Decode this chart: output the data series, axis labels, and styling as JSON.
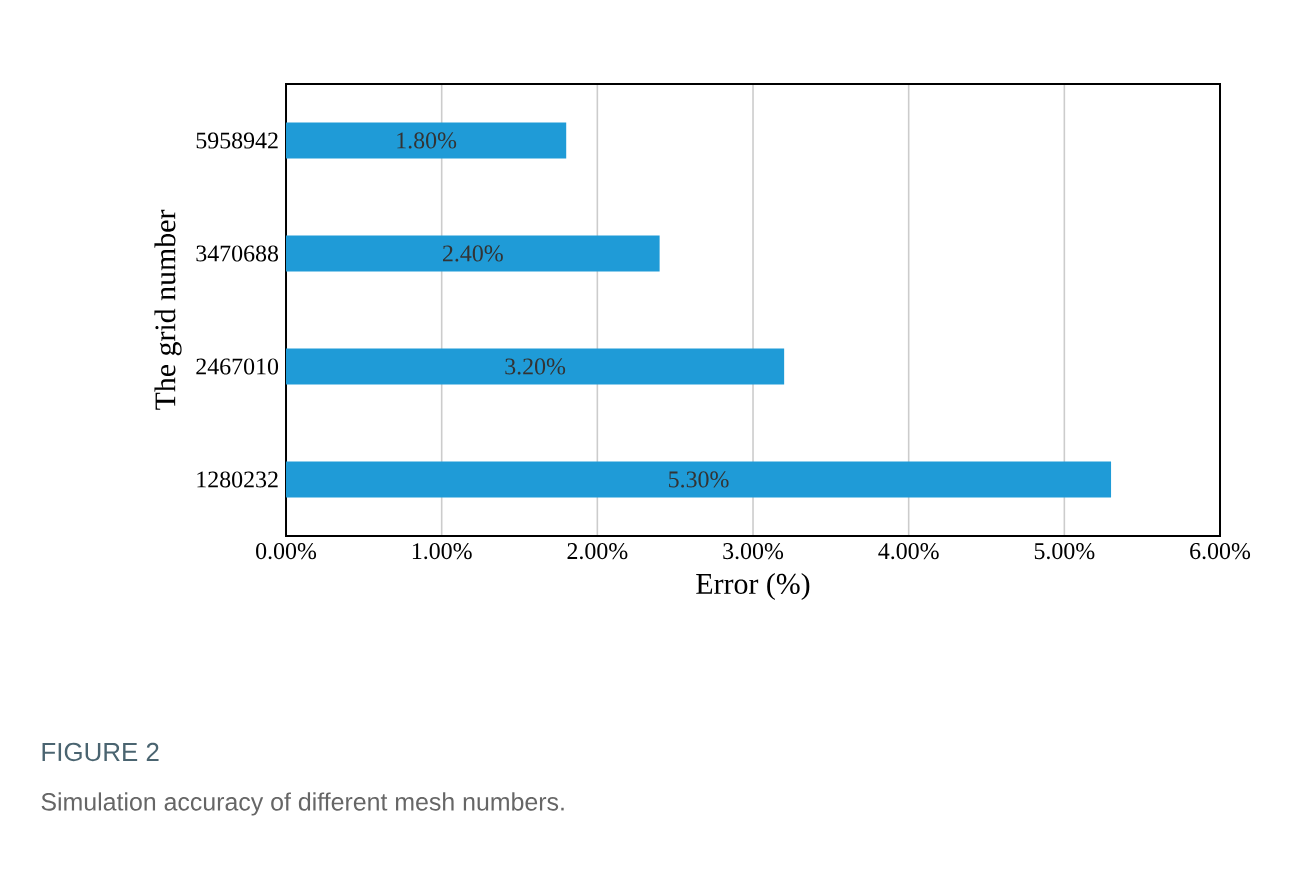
{
  "chart_data": {
    "type": "bar",
    "orientation": "horizontal",
    "xlabel": "Error (%)",
    "ylabel": "The grid number",
    "categories": [
      "5958942",
      "3470688",
      "2467010",
      "1280232"
    ],
    "values": [
      1.8,
      2.4,
      3.2,
      5.3
    ],
    "color": "#1f9bd7",
    "value_labels": [
      "1.80%",
      "2.40%",
      "3.20%",
      "5.30%"
    ],
    "xlim": [
      0,
      6
    ],
    "xticks": [
      {
        "value": 0,
        "label": "0.00%"
      },
      {
        "value": 1,
        "label": "1.00%"
      },
      {
        "value": 2,
        "label": "2.00%"
      },
      {
        "value": 3,
        "label": "3.00%"
      },
      {
        "value": 4,
        "label": "4.00%"
      },
      {
        "value": 5,
        "label": "5.00%"
      },
      {
        "value": 6,
        "label": "6.00%"
      }
    ],
    "grid": "x",
    "annotations": [
      "FIGURE 2",
      "Simulation accuracy of different mesh numbers."
    ]
  }
}
